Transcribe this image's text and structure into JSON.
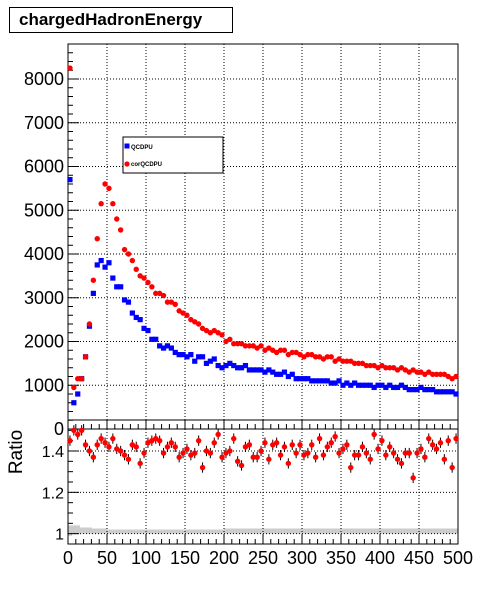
{
  "title": "chargedHadronEnergy",
  "chart_data": [
    {
      "type": "scatter",
      "title": "chargedHadronEnergy",
      "xlabel": "",
      "ylabel": "",
      "xlim": [
        0,
        500
      ],
      "ylim": [
        0,
        8800
      ],
      "x_ticks": [
        "0",
        "50",
        "100",
        "150",
        "200",
        "250",
        "300",
        "350",
        "400",
        "450",
        "500"
      ],
      "y_ticks": [
        "0",
        "1000",
        "2000",
        "3000",
        "4000",
        "5000",
        "6000",
        "7000",
        "8000"
      ],
      "grid": true,
      "legend_position": "top-left",
      "series": [
        {
          "name": "QCDPU",
          "color": "#0000ff",
          "marker": "square",
          "x": [
            2.5,
            7.5,
            12.5,
            17.5,
            22.5,
            27.5,
            32.5,
            37.5,
            42.5,
            47.5,
            52.5,
            57.5,
            62.5,
            67.5,
            72.5,
            77.5,
            82.5,
            87.5,
            92.5,
            97.5,
            102.5,
            107.5,
            112.5,
            117.5,
            122.5,
            127.5,
            132.5,
            137.5,
            142.5,
            147.5,
            152.5,
            157.5,
            162.5,
            167.5,
            172.5,
            177.5,
            182.5,
            187.5,
            192.5,
            197.5,
            202.5,
            207.5,
            212.5,
            217.5,
            222.5,
            227.5,
            232.5,
            237.5,
            242.5,
            247.5,
            252.5,
            257.5,
            262.5,
            267.5,
            272.5,
            277.5,
            282.5,
            287.5,
            292.5,
            297.5,
            302.5,
            307.5,
            312.5,
            317.5,
            322.5,
            327.5,
            332.5,
            337.5,
            342.5,
            347.5,
            352.5,
            357.5,
            362.5,
            367.5,
            372.5,
            377.5,
            382.5,
            387.5,
            392.5,
            397.5,
            402.5,
            407.5,
            412.5,
            417.5,
            422.5,
            427.5,
            432.5,
            437.5,
            442.5,
            447.5,
            452.5,
            457.5,
            462.5,
            467.5,
            472.5,
            477.5,
            482.5,
            487.5,
            492.5,
            497.5
          ],
          "values": [
            5700,
            600,
            800,
            1150,
            1650,
            2350,
            3100,
            3750,
            3850,
            3700,
            3800,
            3450,
            3250,
            3250,
            2950,
            2900,
            2650,
            2550,
            2500,
            2300,
            2250,
            2050,
            2050,
            1900,
            1850,
            1900,
            1850,
            1750,
            1700,
            1700,
            1650,
            1700,
            1550,
            1650,
            1650,
            1500,
            1550,
            1600,
            1450,
            1400,
            1450,
            1500,
            1450,
            1400,
            1400,
            1450,
            1350,
            1350,
            1350,
            1350,
            1300,
            1350,
            1300,
            1250,
            1250,
            1300,
            1200,
            1250,
            1150,
            1150,
            1150,
            1150,
            1100,
            1100,
            1100,
            1100,
            1100,
            1050,
            1050,
            1100,
            1000,
            1050,
            1000,
            1050,
            1000,
            1000,
            1000,
            1000,
            950,
            1000,
            1000,
            950,
            1000,
            950,
            950,
            1000,
            950,
            900,
            900,
            900,
            950,
            900,
            900,
            900,
            850,
            850,
            850,
            850,
            850,
            800
          ]
        },
        {
          "name": "corQCDPU",
          "color": "#ff0000",
          "marker": "circle",
          "x": [
            2.5,
            7.5,
            12.5,
            17.5,
            22.5,
            27.5,
            32.5,
            37.5,
            42.5,
            47.5,
            52.5,
            57.5,
            62.5,
            67.5,
            72.5,
            77.5,
            82.5,
            87.5,
            92.5,
            97.5,
            102.5,
            107.5,
            112.5,
            117.5,
            122.5,
            127.5,
            132.5,
            137.5,
            142.5,
            147.5,
            152.5,
            157.5,
            162.5,
            167.5,
            172.5,
            177.5,
            182.5,
            187.5,
            192.5,
            197.5,
            202.5,
            207.5,
            212.5,
            217.5,
            222.5,
            227.5,
            232.5,
            237.5,
            242.5,
            247.5,
            252.5,
            257.5,
            262.5,
            267.5,
            272.5,
            277.5,
            282.5,
            287.5,
            292.5,
            297.5,
            302.5,
            307.5,
            312.5,
            317.5,
            322.5,
            327.5,
            332.5,
            337.5,
            342.5,
            347.5,
            352.5,
            357.5,
            362.5,
            367.5,
            372.5,
            377.5,
            382.5,
            387.5,
            392.5,
            397.5,
            402.5,
            407.5,
            412.5,
            417.5,
            422.5,
            427.5,
            432.5,
            437.5,
            442.5,
            447.5,
            452.5,
            457.5,
            462.5,
            467.5,
            472.5,
            477.5,
            482.5,
            487.5,
            492.5,
            497.5
          ],
          "values": [
            8250,
            950,
            1150,
            1150,
            1650,
            2400,
            3400,
            4350,
            5150,
            5600,
            5500,
            5150,
            4800,
            4550,
            4100,
            4000,
            3850,
            3650,
            3500,
            3450,
            3350,
            3250,
            3100,
            3100,
            3050,
            2900,
            2900,
            2850,
            2700,
            2650,
            2600,
            2500,
            2450,
            2400,
            2300,
            2250,
            2200,
            2250,
            2200,
            2150,
            2000,
            2050,
            1950,
            1950,
            1950,
            1900,
            1900,
            1900,
            1850,
            1900,
            1800,
            1850,
            1800,
            1750,
            1800,
            1800,
            1700,
            1750,
            1750,
            1700,
            1650,
            1700,
            1700,
            1650,
            1650,
            1600,
            1650,
            1650,
            1550,
            1600,
            1550,
            1550,
            1550,
            1500,
            1500,
            1500,
            1450,
            1450,
            1450,
            1400,
            1450,
            1400,
            1400,
            1400,
            1350,
            1400,
            1350,
            1300,
            1350,
            1300,
            1300,
            1250,
            1300,
            1250,
            1250,
            1250,
            1250,
            1200,
            1150,
            1200
          ]
        }
      ]
    },
    {
      "type": "scatter",
      "title": "",
      "xlabel": "",
      "ylabel": "Ratio",
      "xlim": [
        0,
        500
      ],
      "ylim": [
        0.95,
        1.55
      ],
      "x_ticks": [
        "0",
        "50",
        "100",
        "150",
        "200",
        "250",
        "300",
        "350",
        "400",
        "450",
        "500"
      ],
      "y_ticks": [
        "1",
        "1.2",
        "1.4"
      ],
      "grid": true,
      "band_color": "#cccccc",
      "band_low": [
        0.99,
        1.0,
        1.0,
        1.0,
        1.0,
        1.0,
        1.0,
        1.0,
        1.0,
        1.0,
        1.0,
        1.0,
        1.0,
        1.0,
        1.0,
        1.0,
        1.0,
        1.0,
        1.0,
        1.0,
        1.0,
        1.0,
        1.0,
        1.0,
        1.0,
        1.0,
        1.0,
        1.0,
        1.0,
        1.0,
        1.0,
        1.0,
        1.0,
        1.0,
        1.0,
        1.0,
        1.0,
        1.0,
        1.0,
        1.0,
        1.0,
        1.0,
        1.0,
        1.0,
        1.0,
        1.0,
        1.0,
        1.0,
        1.0,
        1.0,
        1.0,
        1.0,
        1.0,
        1.0,
        1.0,
        1.0,
        1.0,
        1.0,
        1.0,
        1.0,
        1.0,
        1.0,
        1.0,
        1.0,
        1.0,
        1.0,
        1.0,
        1.0,
        1.0,
        1.0,
        1.0,
        1.0,
        1.0,
        1.0,
        1.0,
        1.0,
        1.0,
        1.0,
        1.0,
        1.0,
        1.0,
        1.0,
        1.0,
        1.0,
        1.0,
        1.0,
        1.0,
        1.0,
        1.0,
        1.0,
        1.0,
        1.0,
        1.0,
        1.0,
        1.0,
        1.0,
        1.0,
        1.0,
        1.0,
        1.0
      ],
      "band_high": [
        1.04,
        1.04,
        1.04,
        1.03,
        1.03,
        1.03,
        1.025,
        1.025,
        1.025,
        1.025,
        1.02,
        1.02,
        1.02,
        1.02,
        1.02,
        1.02,
        1.02,
        1.02,
        1.02,
        1.02,
        1.02,
        1.02,
        1.02,
        1.02,
        1.02,
        1.02,
        1.02,
        1.02,
        1.02,
        1.02,
        1.02,
        1.02,
        1.02,
        1.02,
        1.02,
        1.02,
        1.02,
        1.02,
        1.02,
        1.02,
        1.025,
        1.025,
        1.025,
        1.025,
        1.025,
        1.025,
        1.025,
        1.025,
        1.025,
        1.025,
        1.025,
        1.025,
        1.025,
        1.025,
        1.025,
        1.025,
        1.025,
        1.025,
        1.025,
        1.025,
        1.025,
        1.025,
        1.025,
        1.025,
        1.025,
        1.025,
        1.025,
        1.025,
        1.025,
        1.025,
        1.025,
        1.025,
        1.025,
        1.025,
        1.025,
        1.025,
        1.025,
        1.025,
        1.025,
        1.025,
        1.025,
        1.025,
        1.025,
        1.025,
        1.025,
        1.025,
        1.025,
        1.025,
        1.025,
        1.025,
        1.025,
        1.025,
        1.025,
        1.025,
        1.025,
        1.025,
        1.025,
        1.025,
        1.025,
        1.025
      ],
      "series": [
        {
          "name": "",
          "color": "#ff0000",
          "marker": "circle",
          "x": [
            2.5,
            7.5,
            12.5,
            17.5,
            22.5,
            27.5,
            32.5,
            37.5,
            42.5,
            47.5,
            52.5,
            57.5,
            62.5,
            67.5,
            72.5,
            77.5,
            82.5,
            87.5,
            92.5,
            97.5,
            102.5,
            107.5,
            112.5,
            117.5,
            122.5,
            127.5,
            132.5,
            137.5,
            142.5,
            147.5,
            152.5,
            157.5,
            162.5,
            167.5,
            172.5,
            177.5,
            182.5,
            187.5,
            192.5,
            197.5,
            202.5,
            207.5,
            212.5,
            217.5,
            222.5,
            227.5,
            232.5,
            237.5,
            242.5,
            247.5,
            252.5,
            257.5,
            262.5,
            267.5,
            272.5,
            277.5,
            282.5,
            287.5,
            292.5,
            297.5,
            302.5,
            307.5,
            312.5,
            317.5,
            322.5,
            327.5,
            332.5,
            337.5,
            342.5,
            347.5,
            352.5,
            357.5,
            362.5,
            367.5,
            372.5,
            377.5,
            382.5,
            387.5,
            392.5,
            397.5,
            402.5,
            407.5,
            412.5,
            417.5,
            422.5,
            427.5,
            432.5,
            437.5,
            442.5,
            447.5,
            452.5,
            457.5,
            462.5,
            467.5,
            472.5,
            477.5,
            482.5,
            487.5,
            492.5,
            497.5
          ],
          "values": [
            1.45,
            1.5,
            1.48,
            1.5,
            1.43,
            1.4,
            1.37,
            1.43,
            1.46,
            1.44,
            1.42,
            1.46,
            1.41,
            1.4,
            1.38,
            1.36,
            1.43,
            1.42,
            1.34,
            1.39,
            1.44,
            1.45,
            1.46,
            1.45,
            1.39,
            1.42,
            1.44,
            1.42,
            1.37,
            1.39,
            1.41,
            1.38,
            1.39,
            1.45,
            1.32,
            1.4,
            1.39,
            1.44,
            1.48,
            1.37,
            1.39,
            1.4,
            1.46,
            1.35,
            1.33,
            1.42,
            1.43,
            1.37,
            1.37,
            1.4,
            1.44,
            1.36,
            1.43,
            1.44,
            1.38,
            1.42,
            1.34,
            1.43,
            1.39,
            1.43,
            1.38,
            1.39,
            1.43,
            1.37,
            1.46,
            1.38,
            1.42,
            1.44,
            1.47,
            1.39,
            1.41,
            1.43,
            1.32,
            1.38,
            1.38,
            1.42,
            1.39,
            1.36,
            1.48,
            1.41,
            1.45,
            1.38,
            1.42,
            1.39,
            1.36,
            1.34,
            1.39,
            1.39,
            1.27,
            1.39,
            1.41,
            1.37,
            1.46,
            1.43,
            1.41,
            1.44,
            1.36,
            1.45,
            1.32,
            1.46
          ]
        }
      ]
    }
  ]
}
